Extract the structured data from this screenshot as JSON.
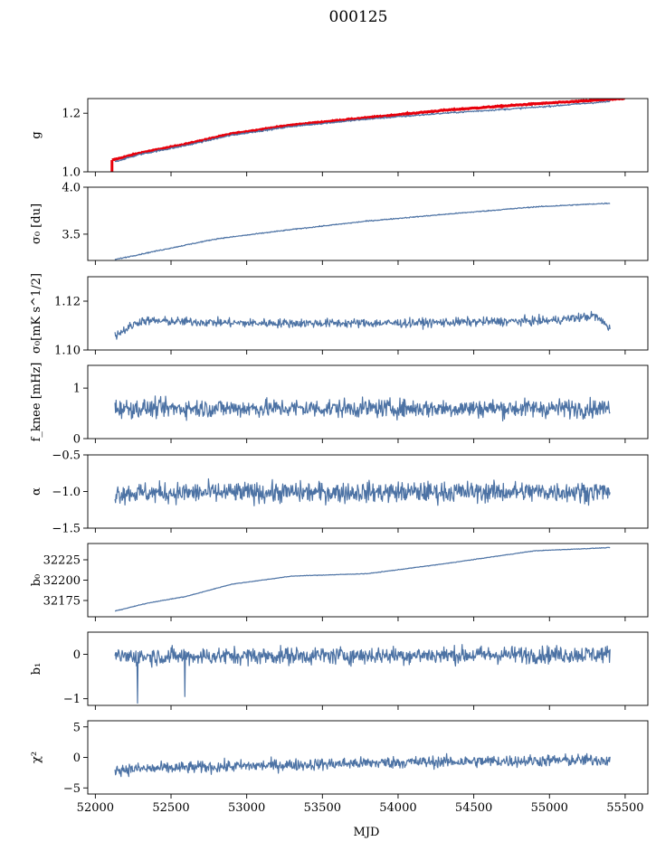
{
  "figure": {
    "title": "000125",
    "xlabel": "MJD"
  },
  "chart_data": {
    "type": "line",
    "title": "000125",
    "xlabel": "MJD",
    "xlim": [
      51950,
      55650
    ],
    "xticks": [
      52000,
      52500,
      53000,
      53500,
      54000,
      54500,
      55000,
      55500
    ],
    "x_range": [
      52130,
      55400
    ],
    "grid": false,
    "colors": {
      "blue": "#4c72a4",
      "red": "#e8000b"
    },
    "panels": [
      {
        "key": "g",
        "ylabel": "g",
        "ylim": [
          1.0,
          1.25
        ],
        "yticks": [
          1.0,
          1.2
        ],
        "ytick_labels": [
          "1.0",
          "1.2"
        ],
        "noise": 0.002,
        "trend": [
          [
            52130,
            1.035
          ],
          [
            52300,
            1.06
          ],
          [
            52600,
            1.09
          ],
          [
            52900,
            1.125
          ],
          [
            53300,
            1.155
          ],
          [
            53800,
            1.18
          ],
          [
            54300,
            1.2
          ],
          [
            54900,
            1.22
          ],
          [
            55400,
            1.24
          ]
        ],
        "red_series": {
          "trend": [
            [
              52110,
              1.04
            ],
            [
              52300,
              1.065
            ],
            [
              52600,
              1.095
            ],
            [
              52900,
              1.13
            ],
            [
              53300,
              1.16
            ],
            [
              53800,
              1.185
            ],
            [
              54300,
              1.21
            ],
            [
              54900,
              1.232
            ],
            [
              55500,
              1.25
            ]
          ],
          "x_range": [
            52110,
            55500
          ],
          "drop_at": 52110,
          "drop_to": 1.0
        }
      },
      {
        "key": "sigma0_du",
        "ylabel": "σ₀ [du]",
        "ylim": [
          3.22,
          4.0
        ],
        "yticks": [
          3.5,
          4.0
        ],
        "ytick_labels": [
          "3.5",
          "4.0"
        ],
        "noise": 0.004,
        "trend": [
          [
            52130,
            3.23
          ],
          [
            52400,
            3.32
          ],
          [
            52800,
            3.45
          ],
          [
            53300,
            3.55
          ],
          [
            53800,
            3.64
          ],
          [
            54300,
            3.71
          ],
          [
            54900,
            3.79
          ],
          [
            55400,
            3.83
          ]
        ]
      },
      {
        "key": "sigma0_mk",
        "ylabel": "σ₀[mK s^1/2]",
        "ylim": [
          1.1,
          1.13
        ],
        "yticks": [
          1.1,
          1.12
        ],
        "ytick_labels": [
          "1.10",
          "1.12"
        ],
        "noise": 0.0013,
        "trend": [
          [
            52130,
            1.106
          ],
          [
            52300,
            1.112
          ],
          [
            53000,
            1.111
          ],
          [
            54000,
            1.111
          ],
          [
            55000,
            1.112
          ],
          [
            55300,
            1.114
          ],
          [
            55400,
            1.109
          ]
        ]
      },
      {
        "key": "fknee",
        "ylabel": "f_knee [mHz]",
        "ylim": [
          0,
          1.45
        ],
        "yticks": [
          0,
          1
        ],
        "ytick_labels": [
          "0",
          "1"
        ],
        "noise": 0.13,
        "trend": [
          [
            52130,
            0.6
          ],
          [
            55400,
            0.6
          ]
        ]
      },
      {
        "key": "alpha",
        "ylabel": "α",
        "ylim": [
          -1.5,
          -0.5
        ],
        "yticks": [
          -1.5,
          -1.0,
          -0.5
        ],
        "ytick_labels": [
          "−1.5",
          "−1.0",
          "−0.5"
        ],
        "noise": 0.1,
        "trend": [
          [
            52130,
            -1.02
          ],
          [
            55400,
            -1.0
          ]
        ]
      },
      {
        "key": "b0",
        "ylabel": "b₀",
        "ylim": [
          32155,
          32245
        ],
        "yticks": [
          32175,
          32200,
          32225
        ],
        "ytick_labels": [
          "32175",
          "32200",
          "32225"
        ],
        "noise": 0.25,
        "trend": [
          [
            52130,
            32162
          ],
          [
            52350,
            32172
          ],
          [
            52600,
            32180
          ],
          [
            52900,
            32195
          ],
          [
            53300,
            32205
          ],
          [
            53800,
            32208
          ],
          [
            54300,
            32220
          ],
          [
            54900,
            32236
          ],
          [
            55400,
            32240
          ]
        ]
      },
      {
        "key": "b1",
        "ylabel": "b₁",
        "ylim": [
          -1.15,
          0.5
        ],
        "yticks": [
          -1,
          0
        ],
        "ytick_labels": [
          "−1",
          "0"
        ],
        "noise": 0.14,
        "trend": [
          [
            52130,
            -0.05
          ],
          [
            55400,
            0.0
          ]
        ],
        "spikes": [
          [
            52280,
            -1.1
          ],
          [
            52590,
            -0.95
          ]
        ]
      },
      {
        "key": "chi2",
        "ylabel": "χ²",
        "ylim": [
          -6,
          6
        ],
        "yticks": [
          -5,
          0,
          5
        ],
        "ytick_labels": [
          "−5",
          "0",
          "5"
        ],
        "noise": 0.7,
        "trend": [
          [
            52130,
            -2.0
          ],
          [
            53000,
            -1.4
          ],
          [
            54000,
            -0.8
          ],
          [
            55400,
            -0.4
          ]
        ]
      }
    ]
  }
}
